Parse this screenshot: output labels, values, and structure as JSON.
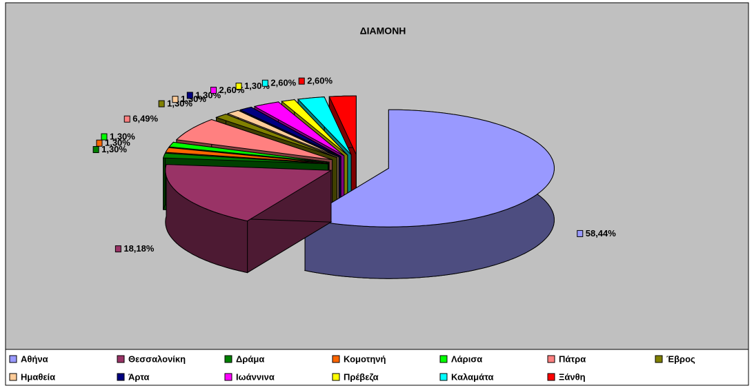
{
  "chart_data": {
    "type": "pie",
    "title": "ΔΙΑΜΟΝΗ",
    "categories": [
      "Αθήνα",
      "Θεσσαλονίκη",
      "Δράμα",
      "Κομοτηνή",
      "Λάρισα",
      "Πάτρα",
      "Έβρος",
      "Ημαθεία",
      "Άρτα",
      "Ιωάννινα",
      "Πρέβεζα",
      "Καλαμάτα",
      "Ξάνθη"
    ],
    "values": [
      58.44,
      18.18,
      1.3,
      1.3,
      1.3,
      6.49,
      1.3,
      1.3,
      1.3,
      2.6,
      1.3,
      2.6,
      2.6
    ],
    "value_labels": [
      "58,44%",
      "18,18%",
      "1,30%",
      "1,30%",
      "1,30%",
      "6,49%",
      "1,30%",
      "1,30%",
      "1,30%",
      "2,60%",
      "1,30%",
      "2,60%",
      "2,60%"
    ],
    "colors": [
      "#9999ff",
      "#993366",
      "#008000",
      "#ff6600",
      "#00ff00",
      "#ff8080",
      "#808000",
      "#ffcc99",
      "#000080",
      "#ff00ff",
      "#ffff00",
      "#00ffff",
      "#ff0000"
    ],
    "legend": "bottom"
  }
}
